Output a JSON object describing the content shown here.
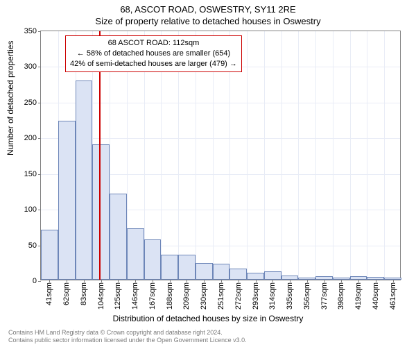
{
  "title_main": "68, ASCOT ROAD, OSWESTRY, SY11 2RE",
  "title_sub": "Size of property relative to detached houses in Oswestry",
  "ylabel": "Number of detached properties",
  "xlabel": "Distribution of detached houses by size in Oswestry",
  "footer_line1": "Contains HM Land Registry data © Crown copyright and database right 2024.",
  "footer_line2": "Contains public sector information licensed under the Open Government Licence v3.0.",
  "chart": {
    "type": "histogram",
    "y": {
      "min": 0,
      "max": 350,
      "step": 50
    },
    "x_labels": [
      "41sqm",
      "62sqm",
      "83sqm",
      "104sqm",
      "125sqm",
      "146sqm",
      "167sqm",
      "188sqm",
      "209sqm",
      "230sqm",
      "251sqm",
      "272sqm",
      "293sqm",
      "314sqm",
      "335sqm",
      "356sqm",
      "377sqm",
      "398sqm",
      "419sqm",
      "440sqm",
      "461sqm"
    ],
    "values": [
      70,
      223,
      279,
      190,
      121,
      72,
      56,
      35,
      35,
      23,
      22,
      16,
      10,
      12,
      6,
      3,
      5,
      3,
      5,
      4,
      3
    ],
    "bar_fill": "#dbe3f4",
    "bar_stroke": "#6d86b8",
    "grid_color": "#e8ecf6",
    "axis_color": "#7f7f7f",
    "background": "#ffffff",
    "ref_line": {
      "value_sqm": 112,
      "color": "#cc0000"
    },
    "annotation": {
      "line1": "68 ASCOT ROAD: 112sqm",
      "line2": "← 58% of detached houses are smaller (654)",
      "line3": "42% of semi-detached houses are larger (479) →",
      "border_color": "#cc0000",
      "bg": "#ffffff"
    },
    "title_fontsize": 13,
    "label_fontsize": 12,
    "tick_fontsize": 11
  }
}
